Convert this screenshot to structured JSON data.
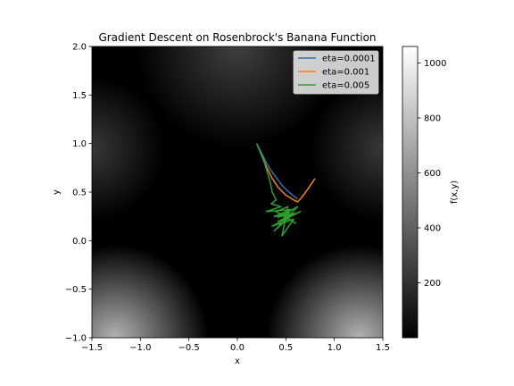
{
  "chart_data": {
    "type": "line",
    "title": "Gradient Descent on Rosenbrock's Banana Function",
    "xlabel": "x",
    "ylabel": "y",
    "xlim": [
      -1.5,
      1.5
    ],
    "ylim": [
      -1.0,
      2.0
    ],
    "x_ticks": [
      "−1.5",
      "−1.0",
      "−0.5",
      "0.0",
      "0.5",
      "1.0",
      "1.5"
    ],
    "x_tick_values": [
      -1.5,
      -1.0,
      -0.5,
      0.0,
      0.5,
      1.0,
      1.5
    ],
    "y_ticks": [
      "−1.0",
      "−0.5",
      "0.0",
      "0.5",
      "1.0",
      "1.5",
      "2.0"
    ],
    "y_tick_values": [
      -1.0,
      -0.5,
      0.0,
      0.5,
      1.0,
      1.5,
      2.0
    ],
    "background": "heatmap of f(x,y) (grayscale)",
    "colorbar": {
      "label": "f(x,y)",
      "range": [
        0,
        1060
      ],
      "ticks": [
        "200",
        "400",
        "600",
        "800",
        "1000"
      ],
      "tick_values": [
        200,
        400,
        600,
        800,
        1000
      ],
      "colormap": "gray"
    },
    "legend_position": "top-right",
    "series": [
      {
        "name": "eta=0.0001",
        "color": "#1f77b4",
        "points": [
          [
            0.2,
            1.0
          ],
          [
            0.25,
            0.9
          ],
          [
            0.3,
            0.8
          ],
          [
            0.35,
            0.72
          ],
          [
            0.4,
            0.65
          ],
          [
            0.46,
            0.57
          ],
          [
            0.52,
            0.51
          ],
          [
            0.58,
            0.46
          ],
          [
            0.62,
            0.43
          ]
        ]
      },
      {
        "name": "eta=0.001",
        "color": "#ff7f0e",
        "points": [
          [
            0.2,
            1.0
          ],
          [
            0.25,
            0.88
          ],
          [
            0.3,
            0.76
          ],
          [
            0.36,
            0.64
          ],
          [
            0.42,
            0.55
          ],
          [
            0.5,
            0.47
          ],
          [
            0.58,
            0.42
          ],
          [
            0.62,
            0.4
          ],
          [
            0.66,
            0.44
          ],
          [
            0.72,
            0.52
          ],
          [
            0.8,
            0.64
          ]
        ]
      },
      {
        "name": "eta=0.005",
        "color": "#2ca02c",
        "points": [
          [
            0.2,
            1.0
          ],
          [
            0.24,
            0.9
          ],
          [
            0.28,
            0.8
          ],
          [
            0.31,
            0.7
          ],
          [
            0.34,
            0.6
          ],
          [
            0.36,
            0.5
          ],
          [
            0.4,
            0.42
          ],
          [
            0.35,
            0.38
          ],
          [
            0.45,
            0.35
          ],
          [
            0.3,
            0.3
          ],
          [
            0.55,
            0.32
          ],
          [
            0.38,
            0.25
          ],
          [
            0.6,
            0.28
          ],
          [
            0.42,
            0.2
          ],
          [
            0.65,
            0.3
          ],
          [
            0.36,
            0.15
          ],
          [
            0.58,
            0.22
          ],
          [
            0.46,
            0.05
          ],
          [
            0.52,
            0.35
          ],
          [
            0.4,
            0.3
          ],
          [
            0.6,
            0.18
          ],
          [
            0.44,
            0.28
          ],
          [
            0.56,
            0.26
          ],
          [
            0.38,
            0.1
          ],
          [
            0.5,
            0.22
          ],
          [
            0.62,
            0.35
          ],
          [
            0.42,
            0.24
          ],
          [
            0.54,
            0.3
          ],
          [
            0.47,
            0.18
          ],
          [
            0.52,
            0.28
          ],
          [
            0.45,
            0.25
          ],
          [
            0.5,
            0.26
          ],
          [
            0.48,
            0.24
          ],
          [
            0.51,
            0.25
          ],
          [
            0.5,
            0.25
          ]
        ]
      }
    ]
  }
}
